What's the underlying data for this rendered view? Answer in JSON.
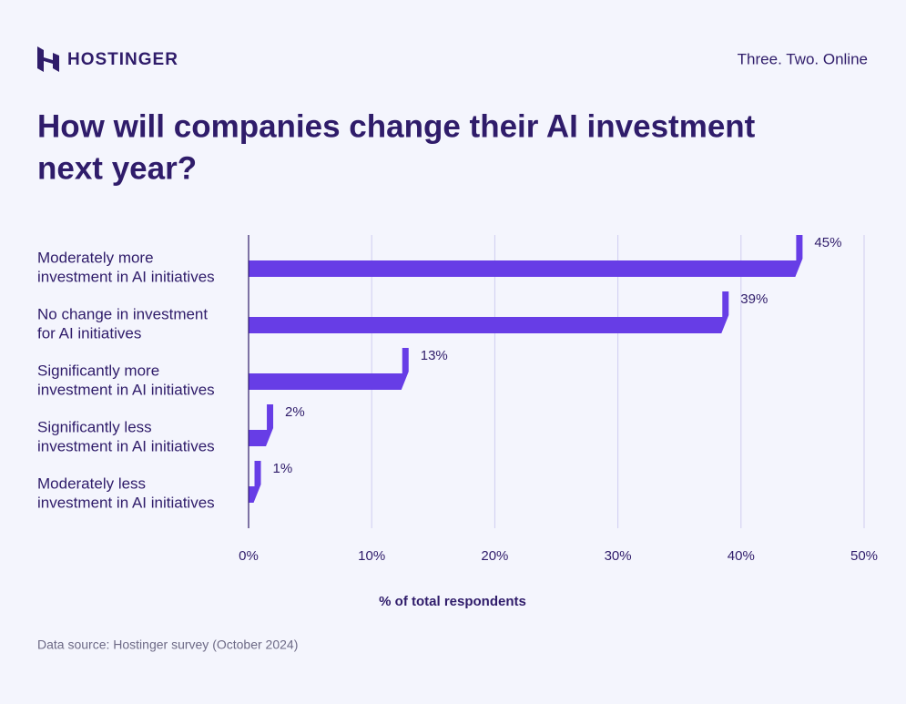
{
  "brand": "HOSTINGER",
  "tagline": "Three. Two. Online",
  "chart_data": {
    "type": "bar",
    "orientation": "horizontal",
    "title": [
      "How will companies change their AI investment",
      "next year?"
    ],
    "categories": [
      [
        "Moderately more",
        "investment in AI initiatives"
      ],
      [
        "No change in investment",
        "for AI initiatives"
      ],
      [
        "Significantly more",
        "investment in AI initiatives"
      ],
      [
        "Significantly less",
        "investment in AI initiatives"
      ],
      [
        "Moderately less",
        "investment in AI initiatives"
      ]
    ],
    "values": [
      45,
      39,
      13,
      2,
      1
    ],
    "value_labels": [
      "45%",
      "39%",
      "13%",
      "2%",
      "1%"
    ],
    "color": "#673de6",
    "xlim": [
      0,
      50
    ],
    "xticks": [
      {
        "value": 0,
        "label": "0%"
      },
      {
        "value": 10,
        "label": "10%"
      },
      {
        "value": 20,
        "label": "20%"
      },
      {
        "value": 30,
        "label": "30%"
      },
      {
        "value": 40,
        "label": "40%"
      },
      {
        "value": 50,
        "label": "50%"
      }
    ],
    "grid": true,
    "xlabel": "% of total respondents",
    "source": "Data source: Hostinger survey (October 2024)"
  }
}
